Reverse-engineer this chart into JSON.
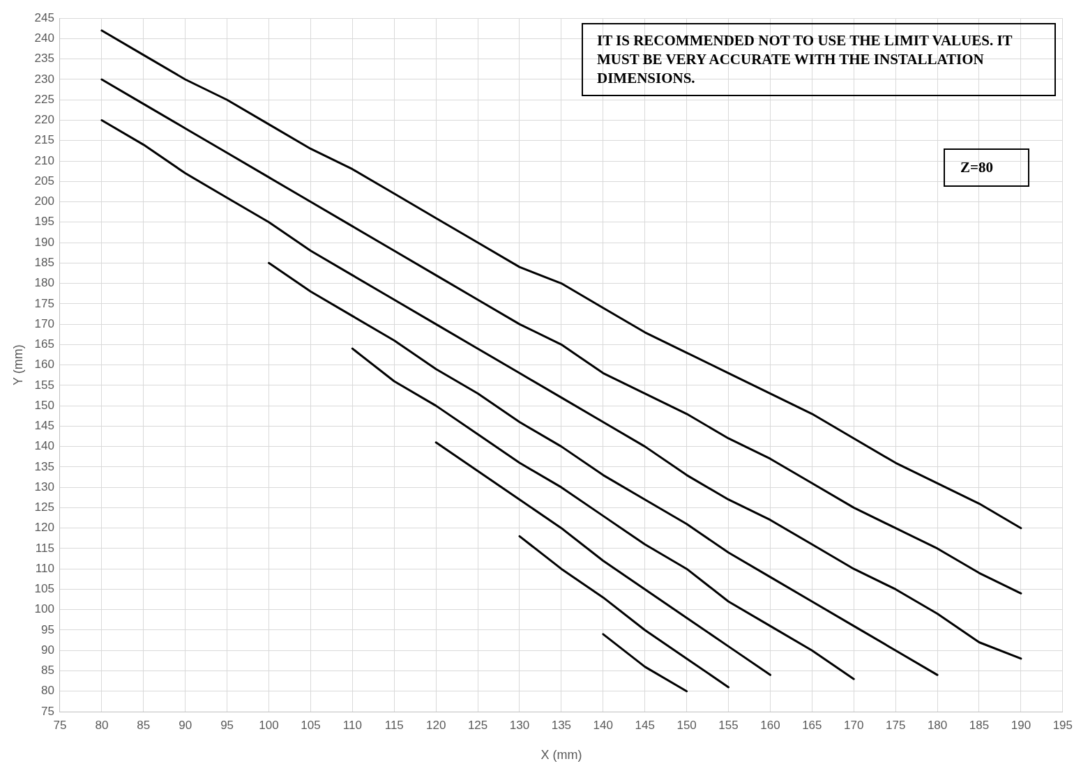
{
  "chart_data": {
    "type": "line",
    "xlabel": "X (mm)",
    "ylabel": "Y (mm)",
    "annotations": [
      "IT IS RECOMMENDED NOT TO USE THE LIMIT VALUES. IT MUST BE VERY ACCURATE WITH THE INSTALLATION DIMENSIONS.",
      "Z=80"
    ],
    "xlim": [
      75,
      195
    ],
    "xticks": [
      75,
      80,
      85,
      90,
      95,
      100,
      105,
      110,
      115,
      120,
      125,
      130,
      135,
      140,
      145,
      150,
      155,
      160,
      165,
      170,
      175,
      180,
      185,
      190,
      195
    ],
    "ylim": [
      75,
      245
    ],
    "yticks": [
      75,
      80,
      85,
      90,
      95,
      100,
      105,
      110,
      115,
      120,
      125,
      130,
      135,
      140,
      145,
      150,
      155,
      160,
      165,
      170,
      175,
      180,
      185,
      190,
      195,
      200,
      205,
      210,
      215,
      220,
      225,
      230,
      235,
      240,
      245
    ],
    "grid": true,
    "legend": false,
    "marker": "none",
    "line_style": "solid",
    "series": [
      {
        "color": "#000000",
        "x": [
          80,
          85,
          90,
          95,
          100,
          105,
          110,
          115,
          120,
          125,
          130,
          135,
          140,
          145,
          150,
          155,
          160,
          165,
          170,
          175,
          180,
          185,
          190
        ],
        "values": [
          242,
          236,
          230,
          225,
          219,
          213,
          208,
          202,
          196,
          190,
          184,
          180,
          174,
          168,
          163,
          158,
          153,
          148,
          142,
          136,
          131,
          126,
          120
        ]
      },
      {
        "color": "#000000",
        "x": [
          80,
          85,
          90,
          95,
          100,
          105,
          110,
          115,
          120,
          125,
          130,
          135,
          140,
          145,
          150,
          155,
          160,
          165,
          170,
          175,
          180,
          185,
          190
        ],
        "values": [
          230,
          224,
          218,
          212,
          206,
          200,
          194,
          188,
          182,
          176,
          170,
          165,
          158,
          153,
          148,
          142,
          137,
          131,
          125,
          120,
          115,
          109,
          104
        ]
      },
      {
        "color": "#000000",
        "x": [
          80,
          85,
          90,
          95,
          100,
          105,
          110,
          115,
          120,
          125,
          130,
          135,
          140,
          145,
          150,
          155,
          160,
          165,
          170,
          175,
          180,
          185,
          190
        ],
        "values": [
          220,
          214,
          207,
          201,
          195,
          188,
          182,
          176,
          170,
          164,
          158,
          152,
          146,
          140,
          133,
          127,
          122,
          116,
          110,
          105,
          99,
          92,
          88
        ]
      },
      {
        "color": "#000000",
        "x": [
          100,
          105,
          110,
          115,
          120,
          125,
          130,
          135,
          140,
          145,
          150,
          155,
          160,
          165,
          170,
          175,
          180
        ],
        "values": [
          185,
          178,
          172,
          166,
          159,
          153,
          146,
          140,
          133,
          127,
          121,
          114,
          108,
          102,
          96,
          90,
          84
        ]
      },
      {
        "color": "#000000",
        "x": [
          110,
          115,
          120,
          125,
          130,
          135,
          140,
          145,
          150,
          155,
          160,
          165,
          170
        ],
        "values": [
          164,
          156,
          150,
          143,
          136,
          130,
          123,
          116,
          110,
          102,
          96,
          90,
          83
        ]
      },
      {
        "color": "#000000",
        "x": [
          120,
          125,
          130,
          135,
          140,
          145,
          150,
          155,
          160
        ],
        "values": [
          141,
          134,
          127,
          120,
          112,
          105,
          98,
          91,
          84
        ]
      },
      {
        "color": "#000000",
        "x": [
          130,
          135,
          140,
          145,
          150,
          155
        ],
        "values": [
          118,
          110,
          103,
          95,
          88,
          81
        ]
      },
      {
        "color": "#000000",
        "x": [
          140,
          145,
          150
        ],
        "values": [
          94,
          86,
          80
        ]
      }
    ]
  }
}
